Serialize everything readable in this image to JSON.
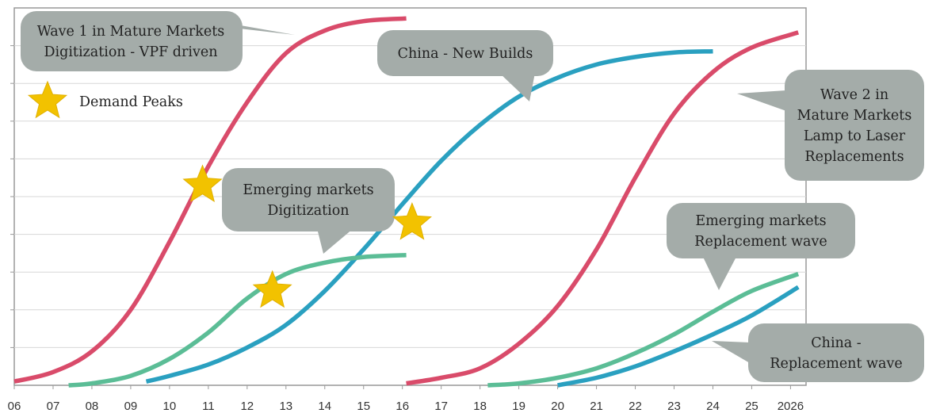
{
  "chart_data": {
    "type": "line",
    "title": "",
    "xlabel": "",
    "ylabel": "",
    "grid": true,
    "x_ticks": [
      "06",
      "07",
      "08",
      "09",
      "10",
      "11",
      "12",
      "13",
      "14",
      "15",
      "16",
      "17",
      "18",
      "19",
      "20",
      "21",
      "22",
      "23",
      "24",
      "25",
      "2026"
    ],
    "xlim": [
      2006,
      2026.4
    ],
    "ylim": [
      0,
      10
    ],
    "series": [
      {
        "color": "#d94b6a",
        "points": [
          [
            2006,
            0.1
          ],
          [
            2007,
            0.35
          ],
          [
            2008,
            0.9
          ],
          [
            2009,
            2.0
          ],
          [
            2010,
            3.8
          ],
          [
            2011,
            5.8
          ],
          [
            2012,
            7.5
          ],
          [
            2013,
            8.8
          ],
          [
            2014,
            9.4
          ],
          [
            2015,
            9.65
          ],
          [
            2016.1,
            9.72
          ]
        ]
      },
      {
        "color": "#d94b6a",
        "points": [
          [
            2016.1,
            0.05
          ],
          [
            2017,
            0.2
          ],
          [
            2018,
            0.45
          ],
          [
            2019,
            1.1
          ],
          [
            2020,
            2.1
          ],
          [
            2021,
            3.6
          ],
          [
            2022,
            5.5
          ],
          [
            2023,
            7.2
          ],
          [
            2024,
            8.3
          ],
          [
            2025,
            8.95
          ],
          [
            2026.2,
            9.35
          ]
        ]
      },
      {
        "color": "#2aa0c0",
        "points": [
          [
            2009.4,
            0.1
          ],
          [
            2010,
            0.25
          ],
          [
            2011,
            0.55
          ],
          [
            2012,
            1.0
          ],
          [
            2013,
            1.6
          ],
          [
            2014,
            2.5
          ],
          [
            2015,
            3.6
          ],
          [
            2016,
            4.8
          ],
          [
            2017,
            5.95
          ],
          [
            2018,
            6.9
          ],
          [
            2019,
            7.65
          ],
          [
            2020,
            8.15
          ],
          [
            2021,
            8.5
          ],
          [
            2022,
            8.7
          ],
          [
            2023,
            8.82
          ],
          [
            2024,
            8.85
          ]
        ]
      },
      {
        "color": "#5bbd96",
        "points": [
          [
            2007.4,
            0
          ],
          [
            2008,
            0.05
          ],
          [
            2009,
            0.25
          ],
          [
            2010,
            0.7
          ],
          [
            2011,
            1.4
          ],
          [
            2012,
            2.3
          ],
          [
            2013,
            2.95
          ],
          [
            2014,
            3.25
          ],
          [
            2015,
            3.4
          ],
          [
            2016.1,
            3.45
          ]
        ]
      },
      {
        "color": "#5bbd96",
        "points": [
          [
            2018.2,
            0
          ],
          [
            2019,
            0.05
          ],
          [
            2020,
            0.2
          ],
          [
            2021,
            0.45
          ],
          [
            2022,
            0.85
          ],
          [
            2023,
            1.35
          ],
          [
            2024,
            1.95
          ],
          [
            2025,
            2.5
          ],
          [
            2026.2,
            2.95
          ]
        ]
      },
      {
        "color": "#2aa0c0",
        "points": [
          [
            2020,
            0
          ],
          [
            2021,
            0.2
          ],
          [
            2022,
            0.5
          ],
          [
            2023,
            0.9
          ],
          [
            2024,
            1.35
          ],
          [
            2025,
            1.85
          ],
          [
            2026.2,
            2.6
          ]
        ]
      }
    ],
    "stars": [
      {
        "x": 2010.85,
        "y": 5.3
      },
      {
        "x": 2012.65,
        "y": 2.5
      },
      {
        "x": 2016.25,
        "y": 4.3
      }
    ],
    "legend": {
      "label": "Demand Peaks",
      "placement": "top-left"
    },
    "callouts": [
      {
        "lines": [
          "Wave 1 in Mature Markets",
          "Digitization - VPF driven"
        ]
      },
      {
        "lines": [
          "China - New Builds"
        ]
      },
      {
        "lines": [
          "Wave 2 in",
          "Mature Markets",
          "Lamp to Laser",
          "Replacements"
        ]
      },
      {
        "lines": [
          "Emerging markets",
          "Digitization"
        ]
      },
      {
        "lines": [
          "Emerging markets",
          "Replacement wave"
        ]
      },
      {
        "lines": [
          "China -",
          "Replacement wave"
        ]
      }
    ]
  }
}
